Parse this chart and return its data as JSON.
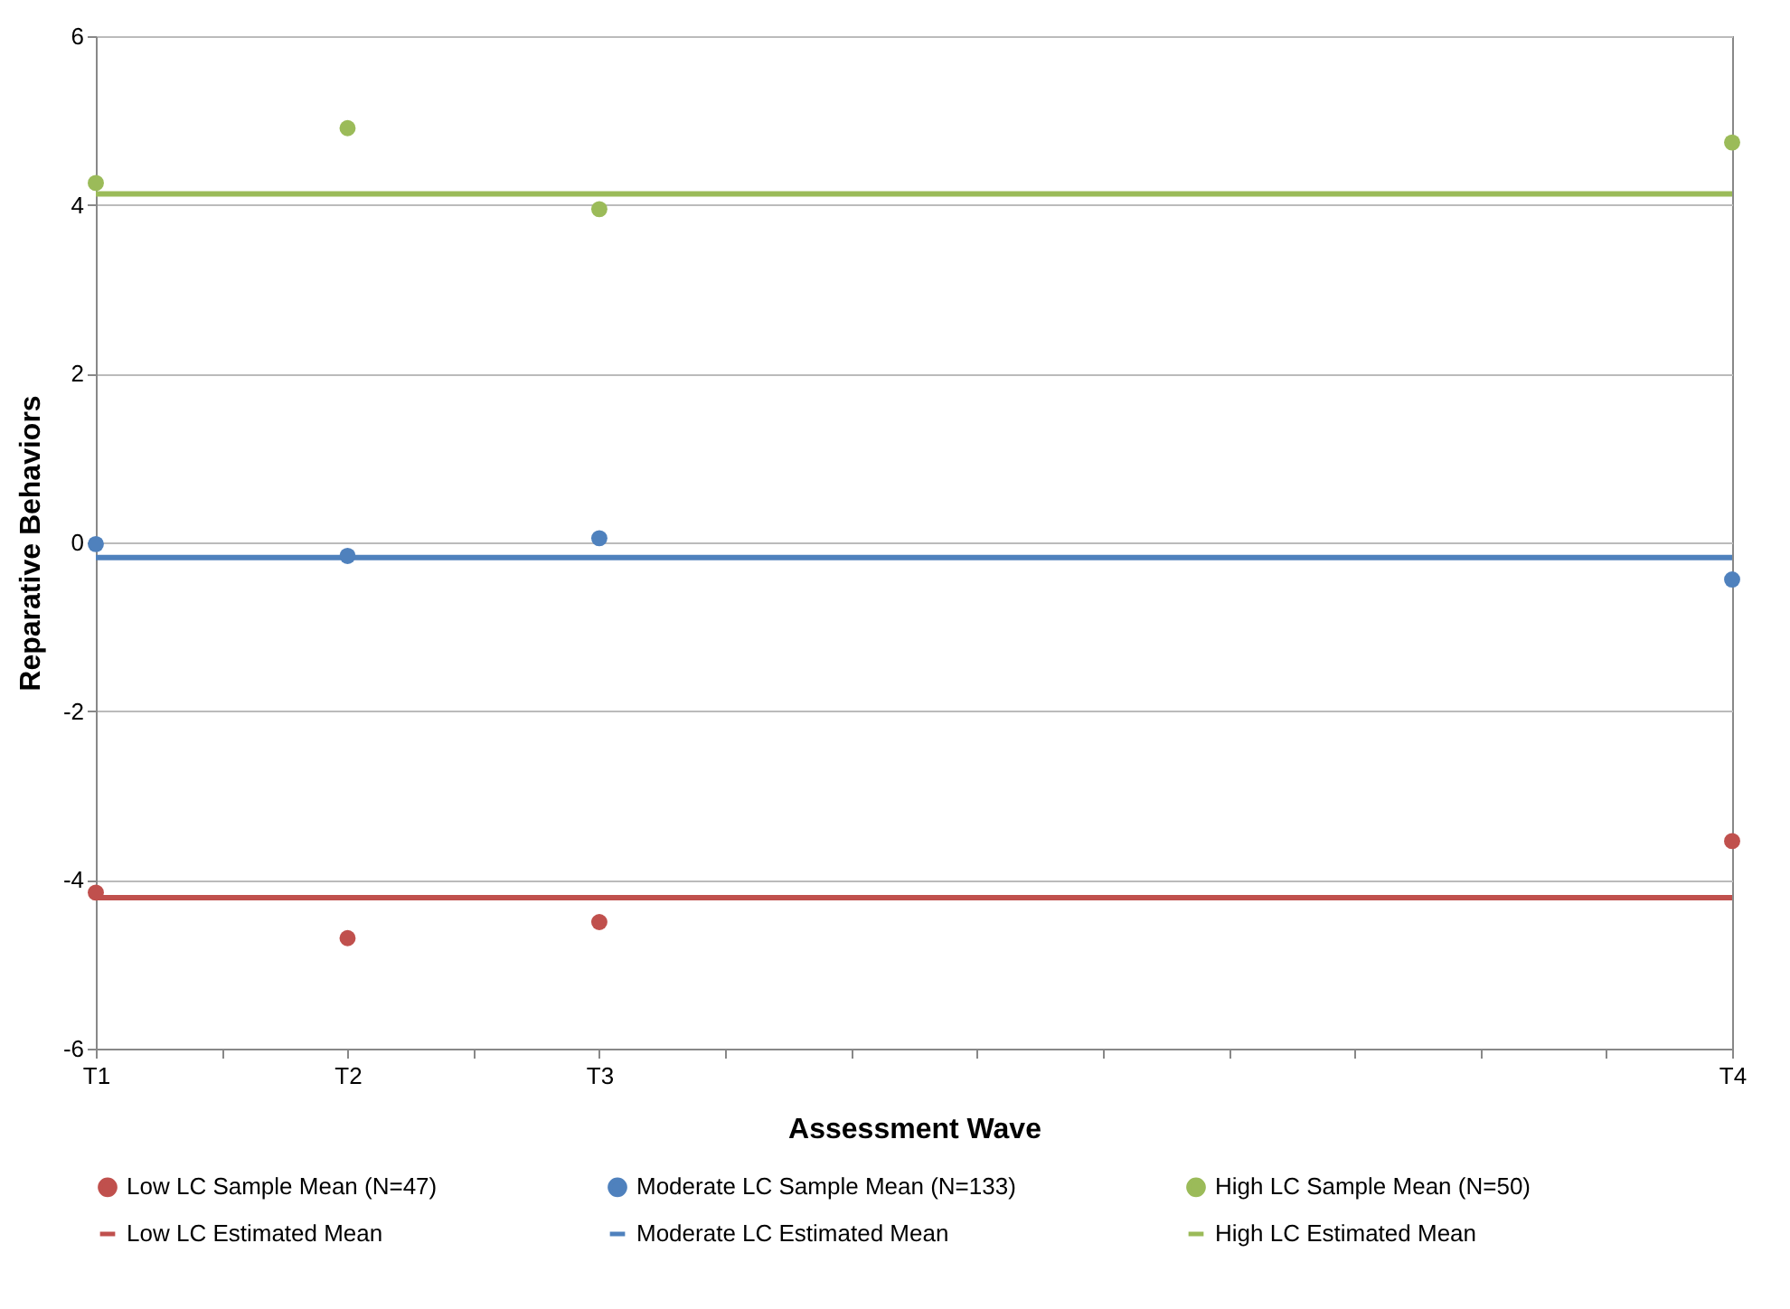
{
  "chart_data": {
    "type": "scatter",
    "xlabel": "Assessment Wave",
    "ylabel": "Reparative Behaviors",
    "categories": [
      "T1",
      null,
      "T2",
      null,
      "T3",
      null,
      null,
      null,
      null,
      null,
      null,
      null,
      null,
      "T4"
    ],
    "ylim": [
      -6,
      6
    ],
    "yticks": [
      -6,
      -4,
      -2,
      0,
      2,
      4,
      6
    ],
    "grid": "y",
    "legend": "bottom",
    "series": [
      {
        "name": "Low LC Sample Mean (N=47)",
        "color": "#c0504d",
        "values": [
          -4.15,
          null,
          -4.69,
          null,
          -4.5,
          null,
          null,
          null,
          null,
          null,
          null,
          null,
          null,
          -3.54
        ]
      },
      {
        "name": "Moderate LC Sample Mean (N=133)",
        "color": "#4f81bd",
        "values": [
          -0.02,
          null,
          -0.16,
          null,
          0.05,
          null,
          null,
          null,
          null,
          null,
          null,
          null,
          null,
          -0.44
        ]
      },
      {
        "name": "High LC Sample Mean (N=50)",
        "color": "#9bbb59",
        "values": [
          4.26,
          null,
          4.91,
          null,
          3.95,
          null,
          null,
          null,
          null,
          null,
          null,
          null,
          null,
          4.74
        ]
      },
      {
        "name": "Low LC Estimated Mean",
        "type": "line",
        "color": "#c0504d",
        "values": [
          -4.21,
          -4.21,
          -4.21,
          -4.21,
          -4.21,
          -4.21,
          -4.21,
          -4.21,
          -4.21,
          -4.21,
          -4.21,
          -4.21,
          -4.21,
          -4.21
        ]
      },
      {
        "name": "Moderate LC Estimated Mean",
        "type": "line",
        "color": "#4f81bd",
        "values": [
          -0.18,
          -0.18,
          -0.18,
          -0.18,
          -0.18,
          -0.18,
          -0.18,
          -0.18,
          -0.18,
          -0.18,
          -0.18,
          -0.18,
          -0.18,
          -0.18
        ]
      },
      {
        "name": "High LC Estimated Mean",
        "type": "line",
        "color": "#9bbb59",
        "values": [
          4.13,
          4.13,
          4.13,
          4.13,
          4.13,
          4.13,
          4.13,
          4.13,
          4.13,
          4.13,
          4.13,
          4.13,
          4.13,
          4.13
        ]
      }
    ]
  }
}
